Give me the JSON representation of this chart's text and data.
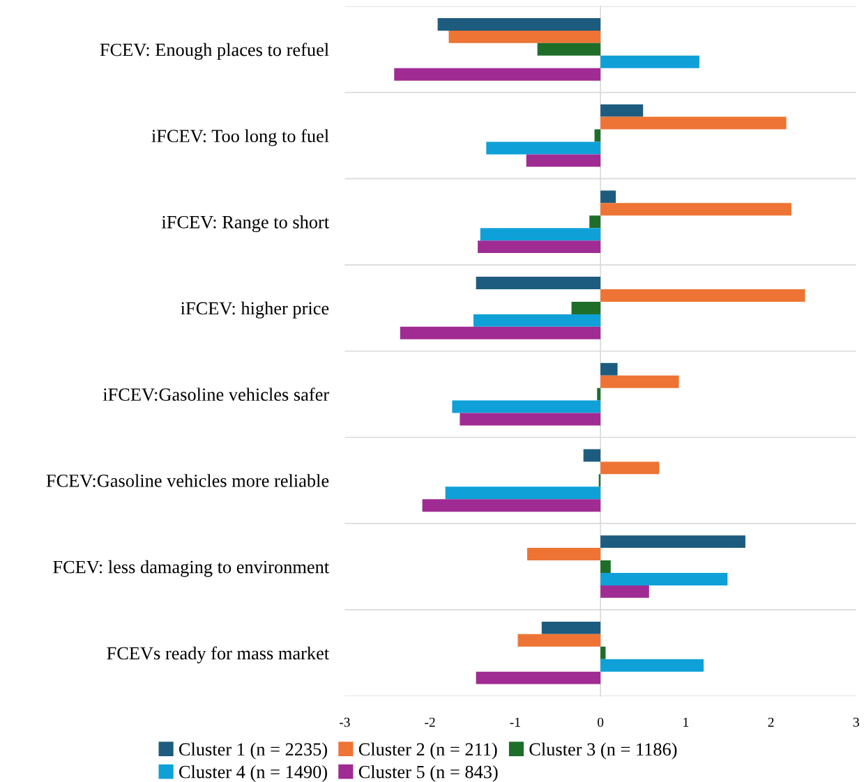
{
  "chart_data": {
    "type": "bar",
    "orientation": "horizontal",
    "categories": [
      "FCEV: Enough places to refuel",
      "iFCEV: Too long to fuel",
      "iFCEV: Range to short",
      "iFCEV: higher price",
      "iFCEV:Gasoline vehicles safer",
      "FCEV:Gasoline vehicles more reliable",
      "FCEV: less damaging to environment",
      "FCEVs ready for mass market"
    ],
    "series": [
      {
        "name": "Cluster 1 (n = 2235)",
        "color": "#1d5c7e",
        "values": [
          -1.91,
          0.5,
          0.18,
          -1.46,
          0.2,
          -0.2,
          1.7,
          -0.69
        ]
      },
      {
        "name": "Cluster 2 (n = 211)",
        "color": "#ed7434",
        "values": [
          -1.78,
          2.18,
          2.24,
          2.4,
          0.92,
          0.69,
          -0.86,
          -0.97
        ]
      },
      {
        "name": "Cluster 3 (n = 1186)",
        "color": "#1e6e2a",
        "values": [
          -0.74,
          -0.07,
          -0.13,
          -0.34,
          -0.04,
          -0.02,
          0.12,
          0.06
        ]
      },
      {
        "name": "Cluster 4 (n = 1490)",
        "color": "#0fa0d8",
        "values": [
          1.16,
          -1.34,
          -1.41,
          -1.49,
          -1.74,
          -1.82,
          1.49,
          1.21
        ]
      },
      {
        "name": "Cluster 5 (n = 843)",
        "color": "#a02b93",
        "values": [
          -2.42,
          -0.87,
          -1.44,
          -2.35,
          -1.65,
          -2.09,
          0.57,
          -1.46
        ]
      }
    ],
    "xlim": [
      -3,
      3
    ],
    "xticks": [
      -3,
      -2,
      -1,
      0,
      1,
      2,
      3
    ],
    "grid": true,
    "legend": "bottom"
  }
}
